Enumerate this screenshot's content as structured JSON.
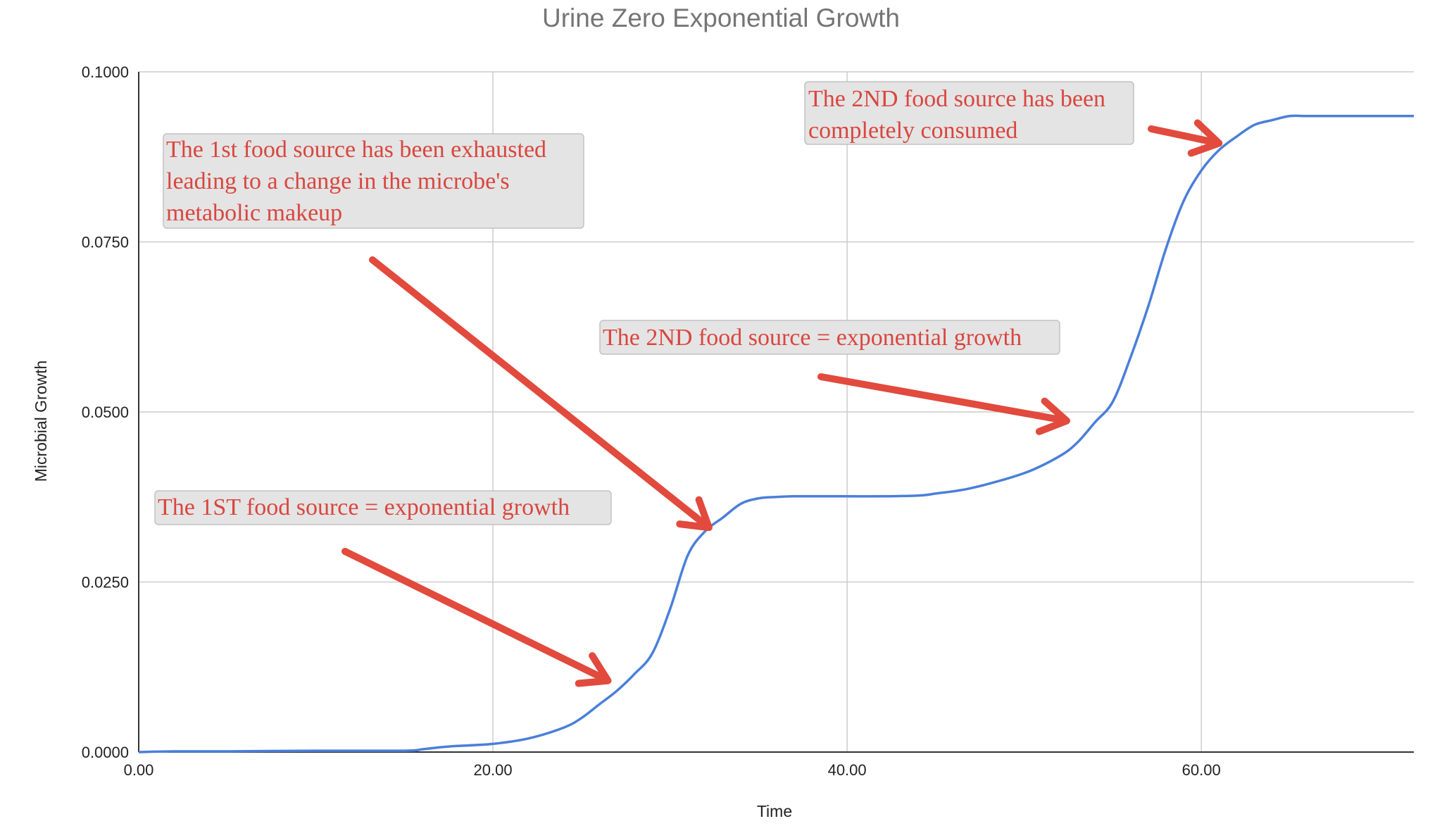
{
  "chart_data": {
    "type": "line",
    "title": "Urine Zero Exponential Growth",
    "xlabel": "Time",
    "ylabel": "Microbial Growth",
    "xlim": [
      0,
      72
    ],
    "ylim": [
      0,
      0.1
    ],
    "xticks": [
      "0.00",
      "20.00",
      "40.00",
      "60.00"
    ],
    "yticks": [
      "0.0000",
      "0.0250",
      "0.0500",
      "0.0750",
      "0.1000"
    ],
    "grid": true,
    "series_color": "#4a7fd9",
    "x": [
      0,
      2,
      5,
      10,
      15,
      16,
      17,
      18,
      20,
      22,
      24,
      25,
      26,
      27,
      28,
      29,
      30,
      31,
      32,
      33,
      34,
      35,
      36,
      37,
      38,
      40,
      42,
      44,
      45,
      47,
      50,
      52,
      53,
      54,
      55,
      56,
      57,
      58,
      59,
      60,
      61,
      62,
      63,
      64,
      65,
      66,
      67,
      68,
      69,
      70,
      71,
      72
    ],
    "y": [
      0.0,
      0.0001,
      0.0001,
      0.0002,
      0.0002,
      0.0004,
      0.0007,
      0.0009,
      0.0012,
      0.002,
      0.0036,
      0.005,
      0.007,
      0.009,
      0.0115,
      0.0145,
      0.021,
      0.0289,
      0.0325,
      0.0345,
      0.0365,
      0.0373,
      0.0375,
      0.0376,
      0.0376,
      0.0376,
      0.0376,
      0.0377,
      0.038,
      0.0388,
      0.041,
      0.0435,
      0.0455,
      0.0485,
      0.0515,
      0.058,
      0.0655,
      0.074,
      0.081,
      0.0855,
      0.0885,
      0.0905,
      0.0922,
      0.0929,
      0.0935,
      0.0935,
      0.0935,
      0.0935,
      0.0935,
      0.0935,
      0.0935,
      0.0935
    ],
    "annotations": [
      {
        "lines": [
          "The 1st food source has been exhausted",
          "leading to a change in the microbe's",
          "metabolic makeup"
        ],
        "target": [
          32.2,
          0.033
        ]
      },
      {
        "lines": [
          "The 2ND food source has been",
          "completely consumed"
        ],
        "target": [
          61,
          0.0895
        ]
      },
      {
        "lines": [
          "The 2ND food source = exponential growth"
        ],
        "target": [
          52.4,
          0.0487
        ]
      },
      {
        "lines": [
          "The 1ST food source = exponential growth"
        ],
        "target": [
          26.5,
          0.0105
        ]
      }
    ]
  }
}
